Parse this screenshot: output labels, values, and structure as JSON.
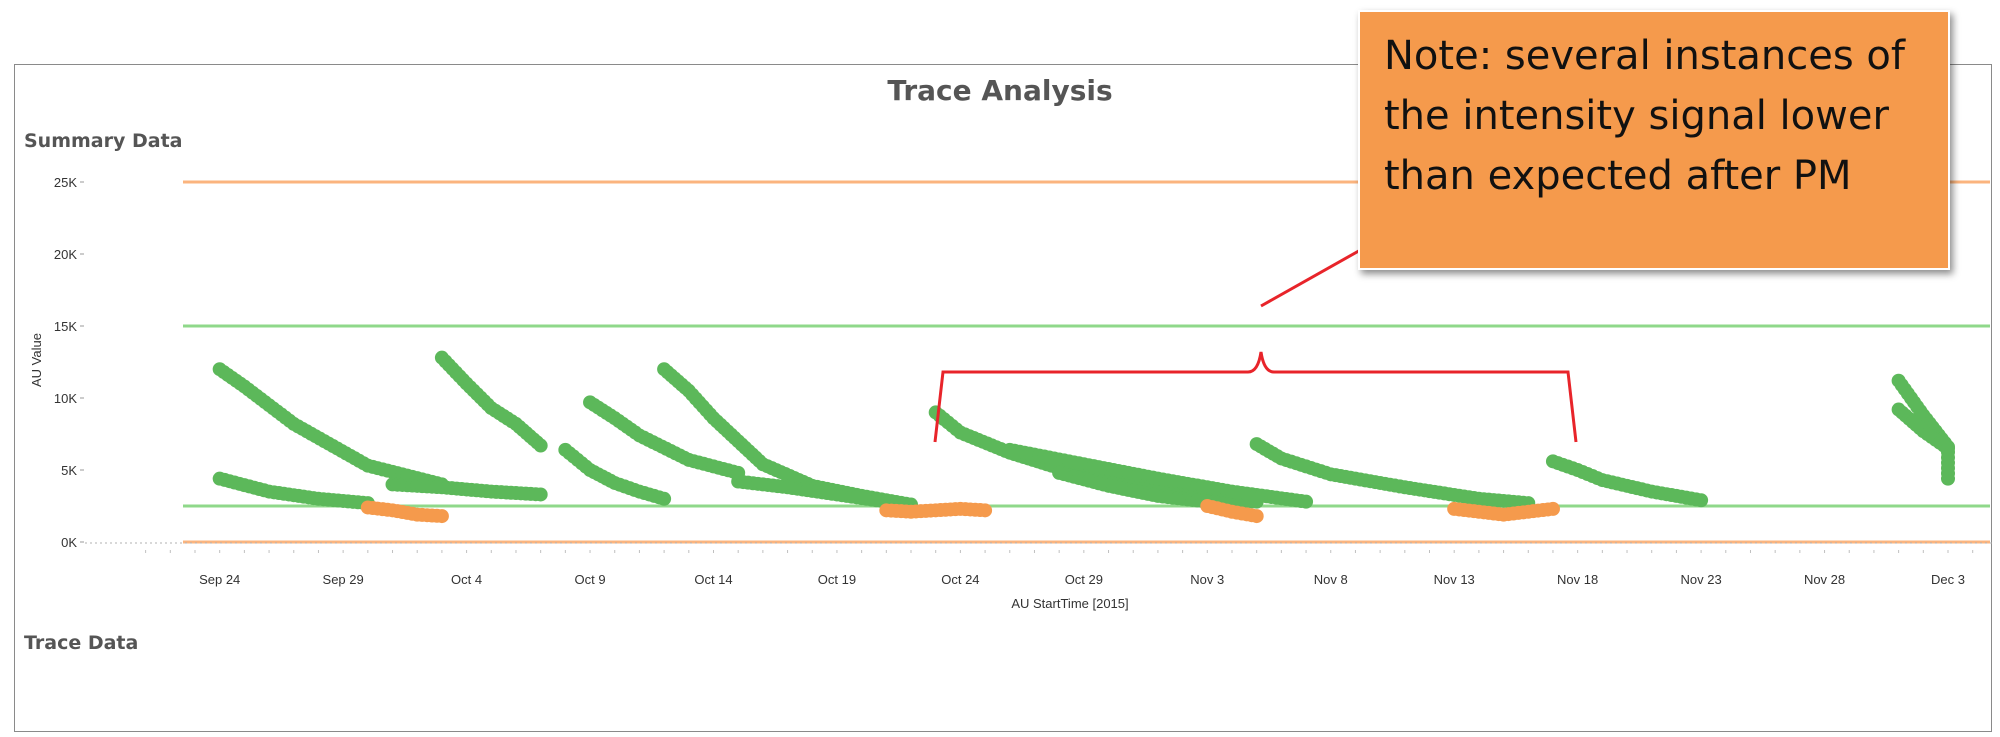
{
  "chart_data": {
    "type": "scatter",
    "title": "Trace Analysis",
    "section_labels": [
      "Summary Data",
      "Trace Data"
    ],
    "xlabel": "AU StartTime [2015]",
    "ylabel": "AU Value",
    "x_ticks": [
      "Sep 24",
      "Sep 29",
      "Oct 4",
      "Oct 9",
      "Oct 14",
      "Oct 19",
      "Oct 24",
      "Oct 29",
      "Nov 3",
      "Nov 8",
      "Nov 13",
      "Nov 18",
      "Nov 23",
      "Nov 28",
      "Dec 3"
    ],
    "x_range": [
      "2015-09-23",
      "2015-12-03"
    ],
    "y_ticks": [
      "0K",
      "5K",
      "10K",
      "15K",
      "20K",
      "25K"
    ],
    "y_tick_values": [
      0,
      5000,
      10000,
      15000,
      20000,
      25000
    ],
    "ylim": [
      0,
      25000
    ],
    "grid": false,
    "reference_lines": [
      {
        "value": 25000,
        "color": "#fbb47e"
      },
      {
        "value": 15000,
        "color": "#8fd88a"
      },
      {
        "value": 2500,
        "color": "#8fd88a"
      },
      {
        "value": 0,
        "color": "#fbb47e"
      }
    ],
    "series": [
      {
        "color": "#5cb85a",
        "segments": [
          {
            "x": [
              "2015-09-24",
              "2015-09-25",
              "2015-09-27",
              "2015-09-30",
              "2015-10-03"
            ],
            "y": [
              12000,
              10800,
              8200,
              5300,
              4000
            ]
          },
          {
            "x": [
              "2015-09-24",
              "2015-09-26",
              "2015-09-28",
              "2015-09-30"
            ],
            "y": [
              4400,
              3500,
              3000,
              2700
            ]
          },
          {
            "x": [
              "2015-10-03",
              "2015-10-04",
              "2015-10-05",
              "2015-10-06",
              "2015-10-07"
            ],
            "y": [
              12800,
              11000,
              9300,
              8200,
              6700
            ]
          },
          {
            "x": [
              "2015-10-01",
              "2015-10-03",
              "2015-10-05",
              "2015-10-07"
            ],
            "y": [
              4000,
              3800,
              3500,
              3300
            ]
          },
          {
            "x": [
              "2015-10-08",
              "2015-10-09",
              "2015-10-10",
              "2015-10-11",
              "2015-10-12"
            ],
            "y": [
              6400,
              5000,
              4100,
              3500,
              3000
            ]
          },
          {
            "x": [
              "2015-10-09",
              "2015-10-10",
              "2015-10-11",
              "2015-10-13",
              "2015-10-15"
            ],
            "y": [
              9700,
              8600,
              7400,
              5700,
              4800
            ]
          },
          {
            "x": [
              "2015-10-12",
              "2015-10-13",
              "2015-10-14",
              "2015-10-16",
              "2015-10-18",
              "2015-10-20",
              "2015-10-22"
            ],
            "y": [
              12000,
              10500,
              8600,
              5400,
              3900,
              3200,
              2600
            ]
          },
          {
            "x": [
              "2015-10-15",
              "2015-10-17",
              "2015-10-19",
              "2015-10-21"
            ],
            "y": [
              4200,
              3800,
              3300,
              2800
            ]
          },
          {
            "x": [
              "2015-10-23",
              "2015-10-24",
              "2015-10-26",
              "2015-10-29",
              "2015-11-01",
              "2015-11-03",
              "2015-11-05"
            ],
            "y": [
              9000,
              7600,
              6200,
              4600,
              3500,
              3000,
              2800
            ]
          },
          {
            "x": [
              "2015-10-26",
              "2015-10-29",
              "2015-11-01",
              "2015-11-04",
              "2015-11-07"
            ],
            "y": [
              6400,
              5400,
              4400,
              3500,
              2800
            ]
          },
          {
            "x": [
              "2015-10-28",
              "2015-10-30",
              "2015-11-01",
              "2015-11-03"
            ],
            "y": [
              4800,
              3900,
              3200,
              2800
            ]
          },
          {
            "x": [
              "2015-11-05",
              "2015-11-06",
              "2015-11-08",
              "2015-11-11",
              "2015-11-14",
              "2015-11-16"
            ],
            "y": [
              6800,
              5800,
              4700,
              3800,
              3000,
              2700
            ]
          },
          {
            "x": [
              "2015-11-17",
              "2015-11-18",
              "2015-11-19",
              "2015-11-21",
              "2015-11-23"
            ],
            "y": [
              5600,
              5000,
              4300,
              3500,
              2900
            ]
          },
          {
            "x": [
              "2015-12-01",
              "2015-12-02",
              "2015-12-03",
              "2015-12-03"
            ],
            "y": [
              11200,
              8800,
              6600,
              4400
            ]
          },
          {
            "x": [
              "2015-12-01",
              "2015-12-02",
              "2015-12-03"
            ],
            "y": [
              9200,
              7700,
              6500
            ]
          }
        ]
      },
      {
        "color": "#f59a4c",
        "segments": [
          {
            "x": [
              "2015-09-30",
              "2015-10-01",
              "2015-10-02",
              "2015-10-03"
            ],
            "y": [
              2400,
              2200,
              1900,
              1800
            ]
          },
          {
            "x": [
              "2015-10-21",
              "2015-10-22",
              "2015-10-23",
              "2015-10-24",
              "2015-10-25"
            ],
            "y": [
              2200,
              2100,
              2200,
              2300,
              2200
            ]
          },
          {
            "x": [
              "2015-11-03",
              "2015-11-04",
              "2015-11-05"
            ],
            "y": [
              2500,
              2100,
              1800
            ]
          },
          {
            "x": [
              "2015-11-13",
              "2015-11-14",
              "2015-11-15",
              "2015-11-16",
              "2015-11-17"
            ],
            "y": [
              2300,
              2100,
              1900,
              2100,
              2300
            ]
          }
        ]
      }
    ],
    "annotation": {
      "text": "Note:  several instances of the intensity signal lower than expected after PM",
      "box_color": "#f59a4c",
      "bracket_color": "#e8242a"
    }
  }
}
